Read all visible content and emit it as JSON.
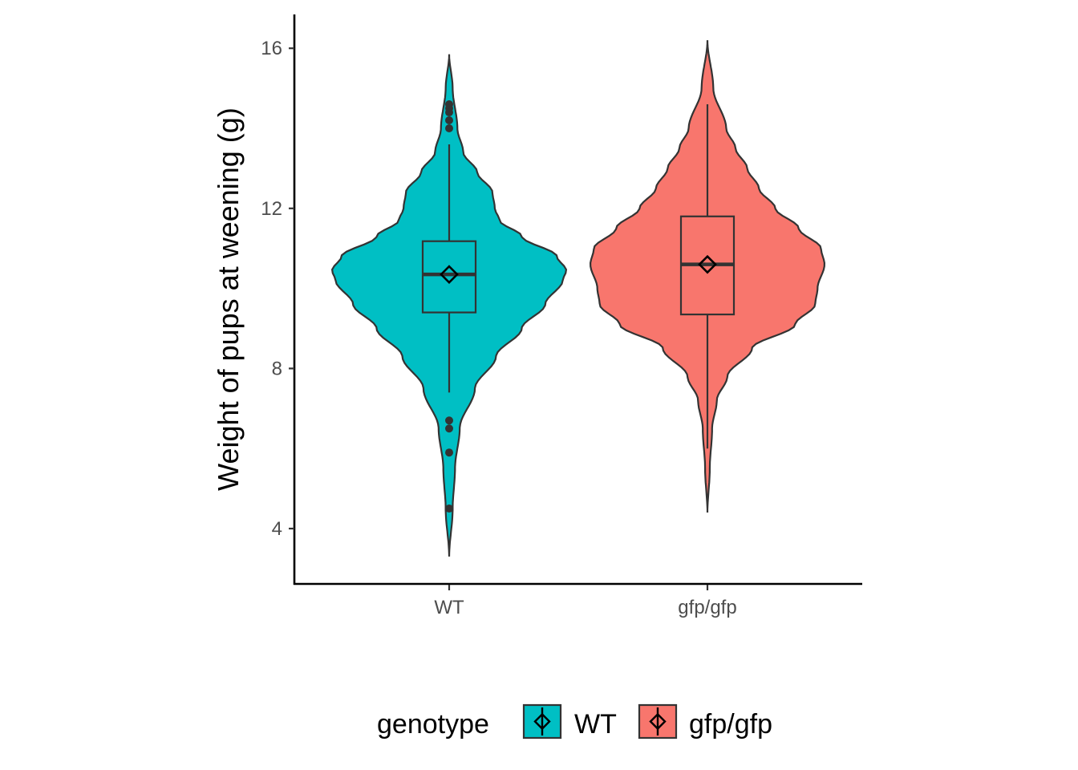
{
  "chart_data": {
    "type": "violin",
    "title": "",
    "xlabel": "",
    "ylabel": "Weight of pups at weening (g)",
    "ylim": [
      2.6,
      16.85
    ],
    "y_ticks": [
      4,
      8,
      12,
      16
    ],
    "categories": [
      "WT",
      "gfp/gfp"
    ],
    "legend": {
      "title": "genotype",
      "position": "bottom",
      "entries": [
        "WT",
        "gfp/gfp"
      ]
    },
    "grid": false,
    "series": [
      {
        "name": "WT",
        "color": "#00BFC4",
        "violin_range": [
          3.3,
          15.85
        ],
        "density_profile": [
          [
            3.3,
            0.0
          ],
          [
            4.5,
            0.03
          ],
          [
            5.5,
            0.05
          ],
          [
            6.5,
            0.09
          ],
          [
            7.5,
            0.22
          ],
          [
            8.3,
            0.4
          ],
          [
            9.0,
            0.62
          ],
          [
            9.6,
            0.82
          ],
          [
            10.2,
            0.97
          ],
          [
            10.45,
            1.0
          ],
          [
            10.8,
            0.92
          ],
          [
            11.3,
            0.62
          ],
          [
            11.7,
            0.43
          ],
          [
            12.0,
            0.39
          ],
          [
            12.4,
            0.37
          ],
          [
            12.9,
            0.24
          ],
          [
            13.4,
            0.12
          ],
          [
            14.0,
            0.07
          ],
          [
            15.0,
            0.03
          ],
          [
            15.85,
            0.0
          ]
        ],
        "box": {
          "q1": 9.4,
          "median": 10.35,
          "q3": 11.18,
          "whisker_low": 7.4,
          "whisker_high": 13.6
        },
        "mean": 10.35,
        "outliers": [
          14.6,
          14.5,
          14.4,
          14.2,
          14.0,
          6.7,
          6.5,
          5.9,
          4.5
        ]
      },
      {
        "name": "gfp/gfp",
        "color": "#F8766D",
        "violin_range": [
          4.4,
          16.2
        ],
        "density_profile": [
          [
            4.4,
            0.0
          ],
          [
            5.5,
            0.02
          ],
          [
            6.5,
            0.04
          ],
          [
            7.2,
            0.08
          ],
          [
            7.8,
            0.17
          ],
          [
            8.5,
            0.38
          ],
          [
            9.1,
            0.75
          ],
          [
            9.6,
            0.92
          ],
          [
            10.0,
            0.94
          ],
          [
            10.6,
            1.0
          ],
          [
            11.0,
            0.97
          ],
          [
            11.5,
            0.78
          ],
          [
            12.0,
            0.58
          ],
          [
            12.5,
            0.44
          ],
          [
            13.0,
            0.34
          ],
          [
            13.5,
            0.24
          ],
          [
            14.0,
            0.16
          ],
          [
            15.0,
            0.05
          ],
          [
            16.2,
            0.0
          ]
        ],
        "box": {
          "q1": 9.35,
          "median": 10.6,
          "q3": 11.8,
          "whisker_low": 6.0,
          "whisker_high": 14.6
        },
        "mean": 10.6,
        "outliers": []
      }
    ]
  }
}
